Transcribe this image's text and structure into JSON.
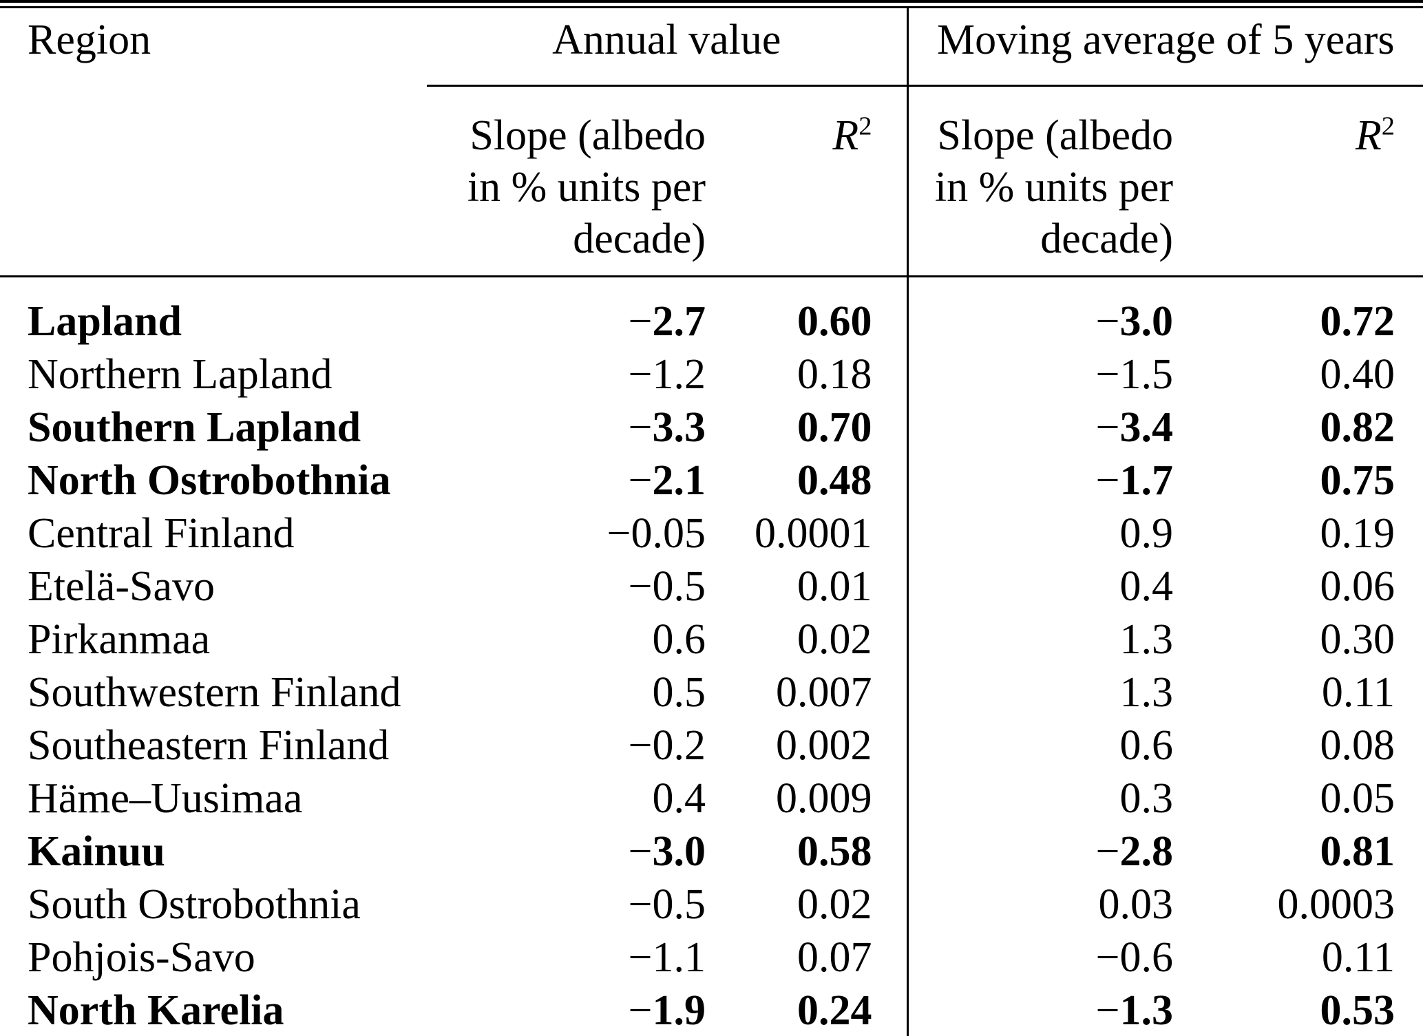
{
  "colors": {
    "text": "#000000",
    "background": "#ffffff",
    "rule": "#000000"
  },
  "table": {
    "columns": {
      "region": "Region",
      "annual_group": "Annual value",
      "ma_group": "Moving average of 5 years",
      "slope_header_lines": [
        "Slope (albedo",
        "in % units per",
        "decade)"
      ],
      "r2": {
        "base": "R",
        "sup": "2"
      }
    },
    "rows": [
      {
        "region": "Lapland",
        "annual_slope": "−2.7",
        "annual_r2": "0.60",
        "ma_slope": "−3.0",
        "ma_r2": "0.72",
        "bold": true
      },
      {
        "region": "Northern Lapland",
        "annual_slope": "−1.2",
        "annual_r2": "0.18",
        "ma_slope": "−1.5",
        "ma_r2": "0.40",
        "bold": false
      },
      {
        "region": "Southern Lapland",
        "annual_slope": "−3.3",
        "annual_r2": "0.70",
        "ma_slope": "−3.4",
        "ma_r2": "0.82",
        "bold": true
      },
      {
        "region": "North Ostrobothnia",
        "annual_slope": "−2.1",
        "annual_r2": "0.48",
        "ma_slope": "−1.7",
        "ma_r2": "0.75",
        "bold": true
      },
      {
        "region": "Central Finland",
        "annual_slope": "−0.05",
        "annual_r2": "0.0001",
        "ma_slope": "0.9",
        "ma_r2": "0.19",
        "bold": false
      },
      {
        "region": "Etelä-Savo",
        "annual_slope": "−0.5",
        "annual_r2": "0.01",
        "ma_slope": "0.4",
        "ma_r2": "0.06",
        "bold": false
      },
      {
        "region": "Pirkanmaa",
        "annual_slope": "0.6",
        "annual_r2": "0.02",
        "ma_slope": "1.3",
        "ma_r2": "0.30",
        "bold": false
      },
      {
        "region": "Southwestern Finland",
        "annual_slope": "0.5",
        "annual_r2": "0.007",
        "ma_slope": "1.3",
        "ma_r2": "0.11",
        "bold": false
      },
      {
        "region": "Southeastern Finland",
        "annual_slope": "−0.2",
        "annual_r2": "0.002",
        "ma_slope": "0.6",
        "ma_r2": "0.08",
        "bold": false
      },
      {
        "region": "Häme–Uusimaa",
        "annual_slope": "0.4",
        "annual_r2": "0.009",
        "ma_slope": "0.3",
        "ma_r2": "0.05",
        "bold": false
      },
      {
        "region": "Kainuu",
        "annual_slope": "−3.0",
        "annual_r2": "0.58",
        "ma_slope": "−2.8",
        "ma_r2": "0.81",
        "bold": true
      },
      {
        "region": "South Ostrobothnia",
        "annual_slope": "−0.5",
        "annual_r2": "0.02",
        "ma_slope": "0.03",
        "ma_r2": "0.0003",
        "bold": false
      },
      {
        "region": "Pohjois-Savo",
        "annual_slope": "−1.1",
        "annual_r2": "0.07",
        "ma_slope": "−0.6",
        "ma_r2": "0.11",
        "bold": false
      },
      {
        "region": "North Karelia",
        "annual_slope": "−1.9",
        "annual_r2": "0.24",
        "ma_slope": "−1.3",
        "ma_r2": "0.53",
        "bold": true
      }
    ]
  }
}
